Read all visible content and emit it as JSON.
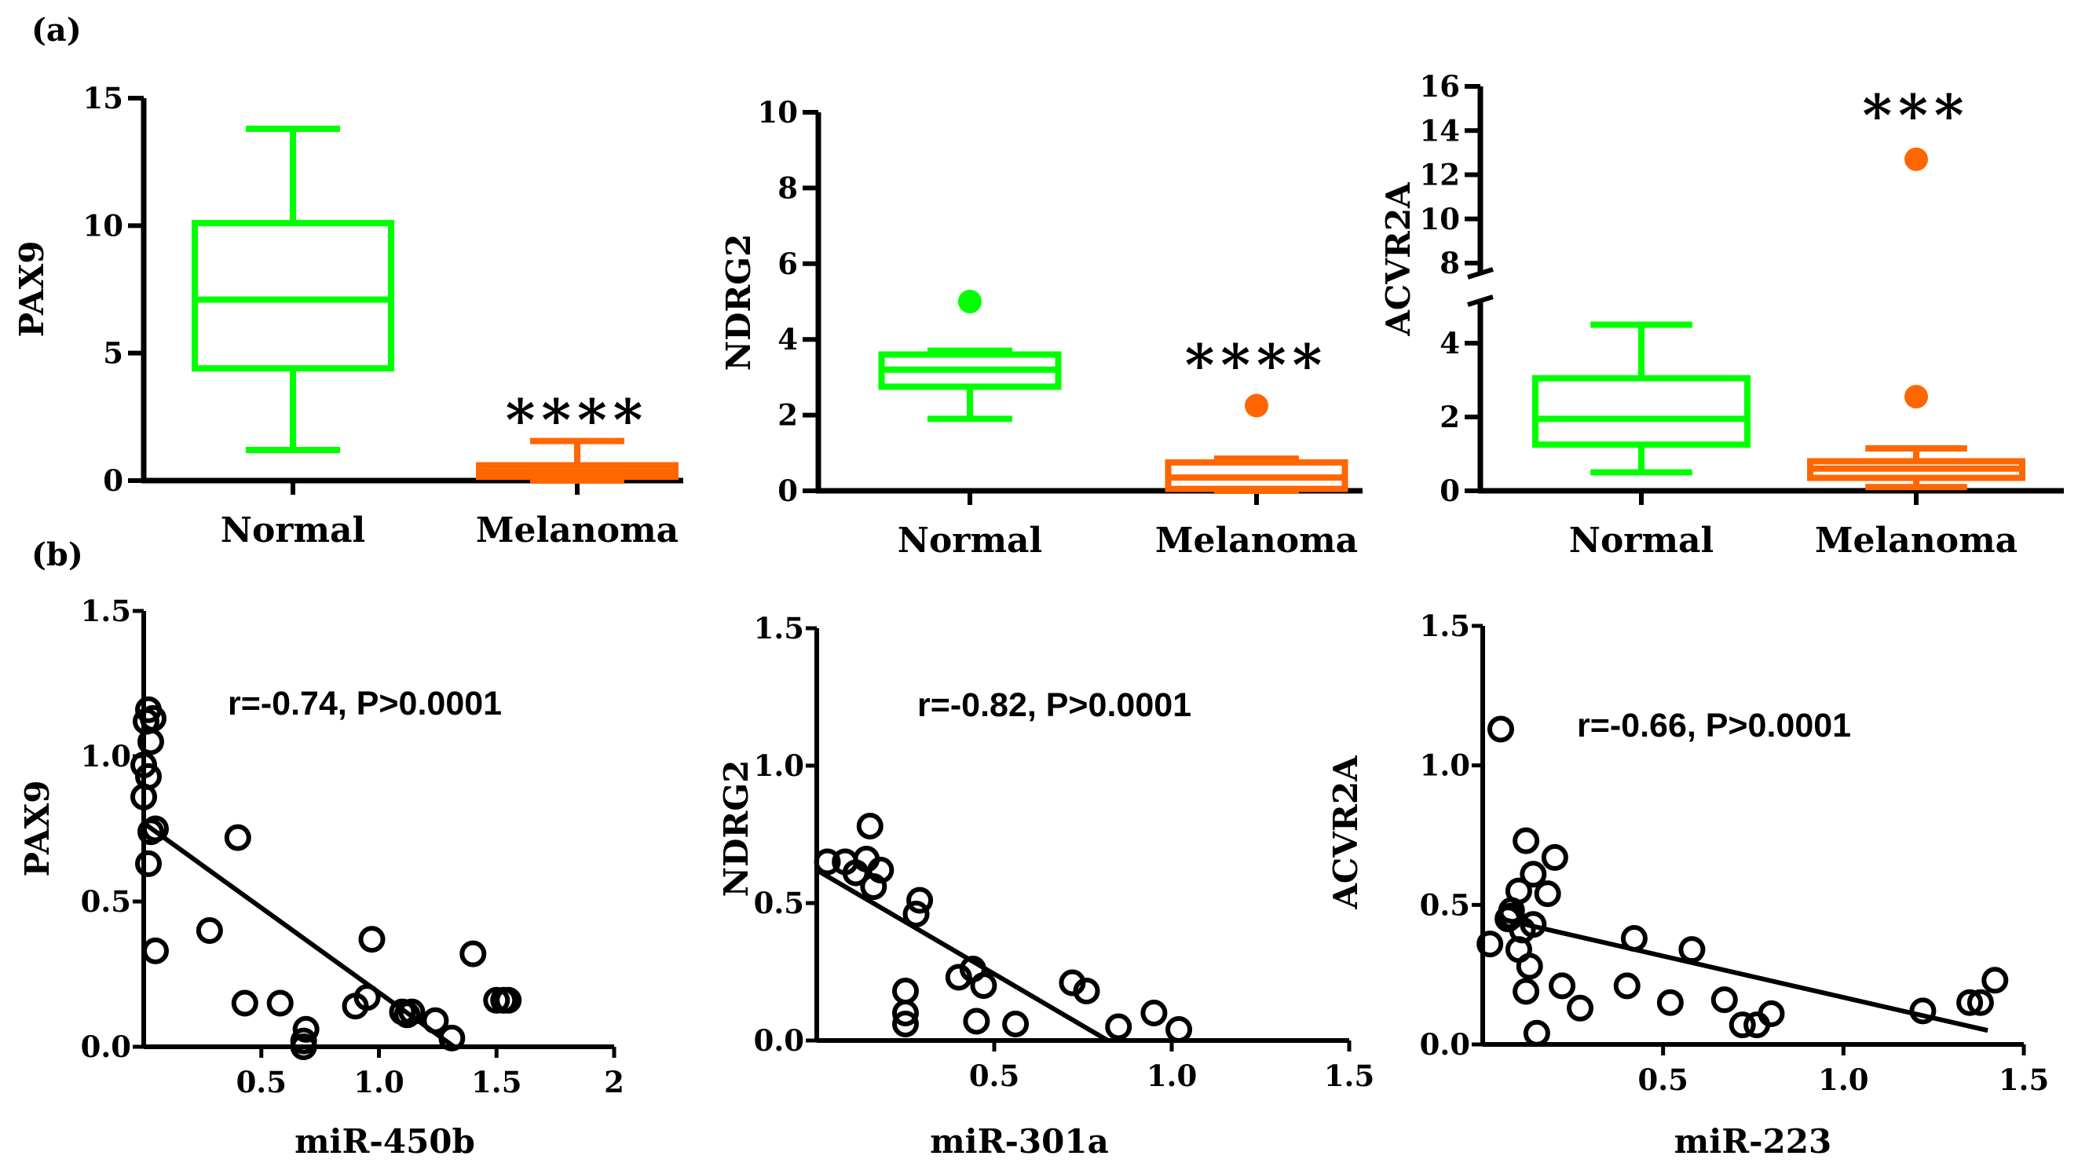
{
  "panel_labels": {
    "a": "(a)",
    "b": "(b)"
  },
  "chart_data": [
    {
      "id": "pax9-box",
      "type": "box",
      "ylabel": "PAX9",
      "categories": [
        "Normal",
        "Melanoma"
      ],
      "ylim": [
        0,
        15
      ],
      "yticks": [
        0,
        5,
        10,
        15
      ],
      "ytick_labels": [
        "0",
        "5",
        "10",
        "15"
      ],
      "boxes": [
        {
          "name": "Normal",
          "color": "#00ff00",
          "whisker_low": 1.2,
          "q1": 4.4,
          "median": 7.1,
          "q3": 10.1,
          "whisker_high": 13.8,
          "outliers": []
        },
        {
          "name": "Melanoma",
          "color": "#ff6600",
          "whisker_low": 0.0,
          "q1": 0.15,
          "median": 0.35,
          "q3": 0.6,
          "whisker_high": 1.55,
          "outliers": []
        }
      ],
      "significance": "****"
    },
    {
      "id": "ndrg2-box",
      "type": "box",
      "ylabel": "NDRG2",
      "categories": [
        "Normal",
        "Melanoma"
      ],
      "ylim": [
        0,
        10
      ],
      "yticks": [
        0,
        2,
        4,
        6,
        8,
        10
      ],
      "ytick_labels": [
        "0",
        "2",
        "4",
        "6",
        "8",
        "10"
      ],
      "boxes": [
        {
          "name": "Normal",
          "color": "#00ff00",
          "whisker_low": 1.9,
          "q1": 2.75,
          "median": 3.2,
          "q3": 3.6,
          "whisker_high": 3.7,
          "outliers": [
            5.0
          ]
        },
        {
          "name": "Melanoma",
          "color": "#ff6600",
          "whisker_low": 0.0,
          "q1": 0.05,
          "median": 0.35,
          "q3": 0.75,
          "whisker_high": 0.85,
          "outliers": [
            2.25
          ]
        }
      ],
      "significance": "****"
    },
    {
      "id": "acvr2a-box",
      "type": "box",
      "ylabel": "ACVR2A",
      "categories": [
        "Normal",
        "Melanoma"
      ],
      "axis_break": [
        5,
        8
      ],
      "lower_range": [
        0,
        5
      ],
      "upper_range": [
        8,
        16
      ],
      "yticks": [
        0,
        2,
        4,
        8,
        10,
        12,
        14,
        16
      ],
      "ytick_labels": [
        "0",
        "2",
        "4",
        "8",
        "10",
        "12",
        "14",
        "16"
      ],
      "boxes": [
        {
          "name": "Normal",
          "color": "#00ff00",
          "whisker_low": 0.5,
          "q1": 1.25,
          "median": 1.95,
          "q3": 3.05,
          "whisker_high": 4.5,
          "outliers": []
        },
        {
          "name": "Melanoma",
          "color": "#ff6600",
          "whisker_low": 0.1,
          "q1": 0.35,
          "median": 0.6,
          "q3": 0.8,
          "whisker_high": 1.15,
          "outliers": [
            2.55,
            12.7
          ]
        }
      ],
      "significance": "***"
    },
    {
      "id": "pax9-scatter",
      "type": "scatter",
      "ylabel": "PAX9",
      "xlabel": "miR-450b",
      "annotation": "r=-0.74, P>0.0001",
      "xlim": [
        0,
        2
      ],
      "ylim": [
        0,
        1.5
      ],
      "xticks": [
        0.5,
        1.0,
        1.5,
        2
      ],
      "xtick_labels": [
        "0.5",
        "1.0",
        "1.5",
        "2"
      ],
      "yticks": [
        0,
        0.5,
        1.0,
        1.5
      ],
      "ytick_labels": [
        "0.0",
        "0.5",
        "1.0",
        "1.5"
      ],
      "fit": {
        "x": [
          0.0,
          1.32
        ],
        "y": [
          0.77,
          0.0
        ]
      },
      "x": [
        0.02,
        0.04,
        0.01,
        0.03,
        0.0,
        0.02,
        0.0,
        0.05,
        0.03,
        0.02,
        0.05,
        0.4,
        0.28,
        0.43,
        0.58,
        0.69,
        0.68,
        0.68,
        0.9,
        0.97,
        0.95,
        1.1,
        1.12,
        1.14,
        1.24,
        1.31,
        1.4,
        1.5,
        1.53,
        1.55
      ],
      "y": [
        1.16,
        1.13,
        1.12,
        1.05,
        0.97,
        0.93,
        0.86,
        0.75,
        0.74,
        0.63,
        0.33,
        0.72,
        0.4,
        0.15,
        0.15,
        0.06,
        0.02,
        0.0,
        0.14,
        0.37,
        0.17,
        0.12,
        0.11,
        0.12,
        0.09,
        0.03,
        0.32,
        0.16,
        0.16,
        0.16
      ]
    },
    {
      "id": "ndrg2-scatter",
      "type": "scatter",
      "ylabel": "NDRG2",
      "xlabel": "miR-301a",
      "annotation": "r=-0.82, P>0.0001",
      "xlim": [
        0,
        1.5
      ],
      "ylim": [
        0,
        1.5
      ],
      "xticks": [
        0.5,
        1.0,
        1.5
      ],
      "xtick_labels": [
        "0.5",
        "1.0",
        "1.5"
      ],
      "yticks": [
        0,
        0.5,
        1.0,
        1.5
      ],
      "ytick_labels": [
        "0.0",
        "0.5",
        "1.0",
        "1.5"
      ],
      "fit": {
        "x": [
          0.0,
          0.82
        ],
        "y": [
          0.62,
          0.0
        ]
      },
      "x": [
        0.03,
        0.08,
        0.11,
        0.15,
        0.18,
        0.14,
        0.16,
        0.29,
        0.28,
        0.25,
        0.25,
        0.25,
        0.4,
        0.44,
        0.47,
        0.45,
        0.56,
        0.72,
        0.76,
        0.85,
        0.95,
        1.02
      ],
      "y": [
        0.65,
        0.65,
        0.61,
        0.78,
        0.62,
        0.66,
        0.56,
        0.51,
        0.46,
        0.18,
        0.1,
        0.06,
        0.23,
        0.26,
        0.2,
        0.07,
        0.06,
        0.21,
        0.18,
        0.05,
        0.1,
        0.04
      ]
    },
    {
      "id": "acvr2a-scatter",
      "type": "scatter",
      "ylabel": "ACVR2A",
      "xlabel": "miR-223",
      "annotation": "r=-0.66, P>0.0001",
      "xlim": [
        0,
        1.5
      ],
      "ylim": [
        0,
        1.5
      ],
      "xticks": [
        0.5,
        1.0,
        1.5
      ],
      "xtick_labels": [
        "0.5",
        "1.0",
        "1.5"
      ],
      "yticks": [
        0,
        0.5,
        1.0,
        1.5
      ],
      "ytick_labels": [
        "0.0",
        "0.5",
        "1.0",
        "1.5"
      ],
      "fit": {
        "x": [
          0.05,
          1.4
        ],
        "y": [
          0.45,
          0.05
        ]
      },
      "x": [
        0.05,
        0.02,
        0.08,
        0.1,
        0.12,
        0.07,
        0.11,
        0.14,
        0.18,
        0.1,
        0.13,
        0.08,
        0.12,
        0.15,
        0.2,
        0.22,
        0.27,
        0.14,
        0.42,
        0.4,
        0.52,
        0.58,
        0.67,
        0.72,
        0.76,
        0.8,
        1.22,
        1.35,
        1.38,
        1.42
      ],
      "y": [
        1.13,
        0.36,
        0.46,
        0.55,
        0.73,
        0.45,
        0.41,
        0.61,
        0.54,
        0.34,
        0.28,
        0.48,
        0.19,
        0.04,
        0.67,
        0.21,
        0.13,
        0.43,
        0.38,
        0.21,
        0.15,
        0.34,
        0.16,
        0.07,
        0.07,
        0.11,
        0.12,
        0.15,
        0.15,
        0.23
      ]
    }
  ]
}
